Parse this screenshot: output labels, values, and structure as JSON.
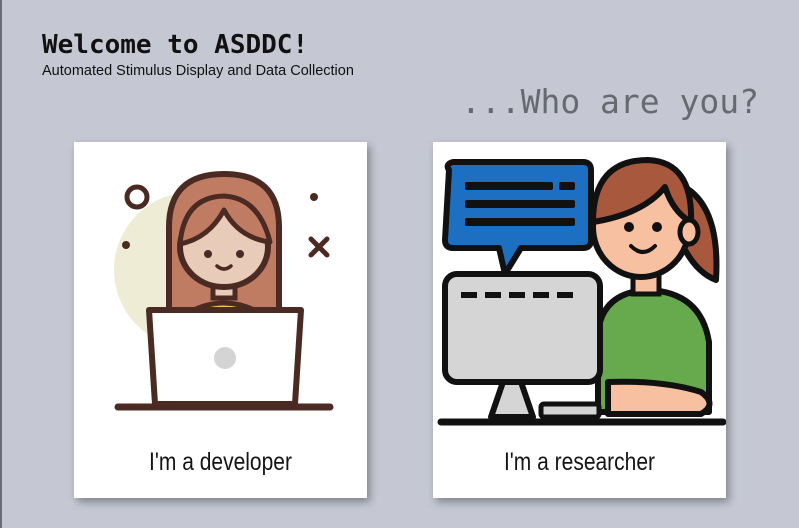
{
  "header": {
    "title": "Welcome to ASDDC!",
    "subtitle": "Automated Stimulus Display and Data Collection",
    "question": "...Who are you?"
  },
  "cards": [
    {
      "label": "I'm a developer",
      "icon": "developer-laptop-illustration"
    },
    {
      "label": "I'm a researcher",
      "icon": "researcher-computer-illustration"
    }
  ],
  "colors": {
    "background": "#c5c8d3",
    "card": "#ffffff",
    "question_text": "#666a70",
    "speech_bubble": "#1d6fc2",
    "hair": "#b56b52",
    "shirt_green": "#67aa4e"
  }
}
